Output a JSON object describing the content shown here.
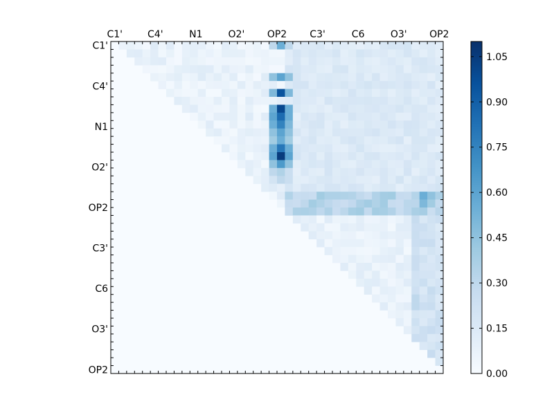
{
  "chart_data": {
    "type": "heatmap",
    "title": "",
    "xlabel": "",
    "ylabel": "",
    "labels": [
      "C1'",
      "C4'",
      "N1",
      "O2'",
      "OP2",
      "C3'",
      "C6",
      "O3'",
      "OP2"
    ],
    "n_cells": 42,
    "color_range": [
      0.0,
      1.1
    ],
    "colormap": "Blues",
    "colors": {
      "low": "#f7fbff",
      "high": "#08306b"
    },
    "colorbar_ticks": [
      "0.00",
      "0.15",
      "0.30",
      "0.45",
      "0.60",
      "0.75",
      "0.90",
      "1.05"
    ],
    "highlight_cells": [
      [
        0,
        20,
        0.3
      ],
      [
        0,
        21,
        0.55
      ],
      [
        0,
        22,
        0.3
      ],
      [
        4,
        20,
        0.45
      ],
      [
        4,
        21,
        0.6
      ],
      [
        4,
        22,
        0.45
      ],
      [
        6,
        20,
        0.5
      ],
      [
        6,
        21,
        0.95
      ],
      [
        6,
        22,
        0.5
      ],
      [
        8,
        20,
        0.55
      ],
      [
        8,
        21,
        1.0
      ],
      [
        8,
        22,
        0.55
      ],
      [
        9,
        20,
        0.6
      ],
      [
        9,
        21,
        0.85
      ],
      [
        9,
        22,
        0.55
      ],
      [
        10,
        20,
        0.55
      ],
      [
        10,
        21,
        0.75
      ],
      [
        10,
        22,
        0.5
      ],
      [
        11,
        20,
        0.45
      ],
      [
        11,
        21,
        0.6
      ],
      [
        11,
        22,
        0.45
      ],
      [
        12,
        20,
        0.4
      ],
      [
        12,
        21,
        0.55
      ],
      [
        12,
        22,
        0.4
      ],
      [
        13,
        20,
        0.55
      ],
      [
        13,
        21,
        0.8
      ],
      [
        13,
        22,
        0.55
      ],
      [
        14,
        20,
        0.6
      ],
      [
        14,
        21,
        1.05
      ],
      [
        14,
        22,
        0.6
      ],
      [
        15,
        20,
        0.45
      ],
      [
        15,
        21,
        0.65
      ],
      [
        15,
        22,
        0.45
      ],
      [
        16,
        20,
        0.3
      ],
      [
        16,
        21,
        0.35
      ],
      [
        16,
        22,
        0.25
      ],
      [
        17,
        20,
        0.2
      ],
      [
        17,
        21,
        0.3
      ],
      [
        17,
        22,
        0.25
      ],
      [
        19,
        26,
        0.4
      ],
      [
        19,
        29,
        0.35
      ],
      [
        19,
        35,
        0.4
      ],
      [
        19,
        39,
        0.55
      ],
      [
        19,
        40,
        0.45
      ],
      [
        20,
        24,
        0.3
      ],
      [
        20,
        26,
        0.35
      ],
      [
        20,
        33,
        0.35
      ],
      [
        20,
        39,
        0.5
      ],
      [
        20,
        40,
        0.4
      ],
      [
        32,
        38,
        0.3
      ],
      [
        33,
        38,
        0.3
      ]
    ]
  }
}
